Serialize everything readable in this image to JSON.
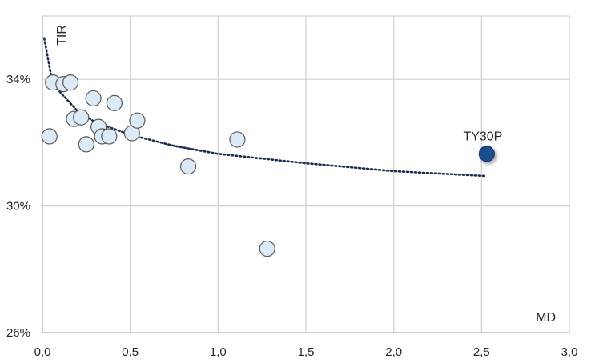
{
  "chart_data": {
    "type": "scatter",
    "xlabel": "MD",
    "ylabel": "TIR",
    "xlim": [
      0,
      3
    ],
    "ylim": [
      26,
      36
    ],
    "x_ticks": [
      "0,0",
      "0,5",
      "1,0",
      "1,5",
      "2,0",
      "2,5",
      "3,0"
    ],
    "x_tick_values": [
      0,
      0.5,
      1.0,
      1.5,
      2.0,
      2.5,
      3.0
    ],
    "y_ticks": [
      "26%",
      "30%",
      "34%"
    ],
    "y_tick_values": [
      26,
      30,
      34
    ],
    "grid": true,
    "series": [
      {
        "points": [
          {
            "x": 0.04,
            "y": 32.2
          },
          {
            "x": 0.06,
            "y": 33.9
          },
          {
            "x": 0.12,
            "y": 33.85
          },
          {
            "x": 0.16,
            "y": 33.9
          },
          {
            "x": 0.18,
            "y": 32.75
          },
          {
            "x": 0.22,
            "y": 32.8
          },
          {
            "x": 0.25,
            "y": 31.95
          },
          {
            "x": 0.29,
            "y": 33.4
          },
          {
            "x": 0.32,
            "y": 32.5
          },
          {
            "x": 0.34,
            "y": 32.2
          },
          {
            "x": 0.38,
            "y": 32.2
          },
          {
            "x": 0.41,
            "y": 33.25
          },
          {
            "x": 0.51,
            "y": 32.3
          },
          {
            "x": 0.54,
            "y": 32.7
          },
          {
            "x": 0.83,
            "y": 31.25
          },
          {
            "x": 1.11,
            "y": 32.1
          },
          {
            "x": 1.28,
            "y": 28.65
          }
        ],
        "color": "#dce9f7",
        "stroke": "#5a5a5a"
      },
      {
        "name": "TY30P",
        "points": [
          {
            "x": 2.53,
            "y": 31.65
          }
        ],
        "color": "#1f4e8c",
        "stroke": "#16386a"
      }
    ],
    "trendline": {
      "type": "logarithmic",
      "color": "#1a2c4e",
      "x_range": [
        0.01,
        2.52
      ],
      "points": [
        {
          "x": 0.01,
          "y": 35.3
        },
        {
          "x": 0.05,
          "y": 34.1
        },
        {
          "x": 0.1,
          "y": 33.6
        },
        {
          "x": 0.2,
          "y": 33.0
        },
        {
          "x": 0.3,
          "y": 32.65
        },
        {
          "x": 0.5,
          "y": 32.25
        },
        {
          "x": 0.75,
          "y": 31.9
        },
        {
          "x": 1.0,
          "y": 31.65
        },
        {
          "x": 1.5,
          "y": 31.35
        },
        {
          "x": 2.0,
          "y": 31.1
        },
        {
          "x": 2.52,
          "y": 30.95
        }
      ]
    }
  }
}
